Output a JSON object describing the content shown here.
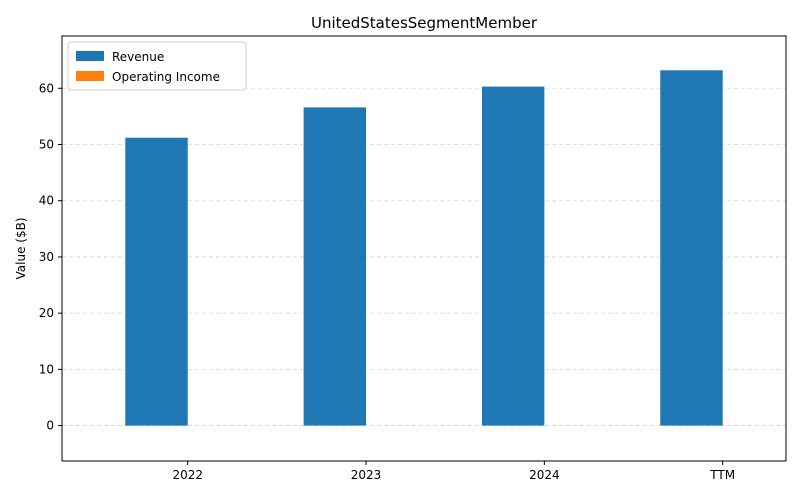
{
  "chart_data": {
    "type": "bar",
    "title": "UnitedStatesSegmentMember",
    "xlabel": "",
    "ylabel": "Value ($B)",
    "categories": [
      "2022",
      "2023",
      "2024",
      "TTM"
    ],
    "series": [
      {
        "name": "Revenue",
        "color": "#1f77b4",
        "values": [
          51.2,
          56.6,
          60.3,
          63.2
        ]
      },
      {
        "name": "Operating Income",
        "color": "#ff7f0e",
        "values": [
          0,
          0,
          0,
          0
        ]
      }
    ],
    "ylim": [
      -6.3,
      69.3
    ],
    "yticks": [
      0,
      10,
      20,
      30,
      40,
      50,
      60
    ],
    "grid": true,
    "legend_position": "top-left"
  }
}
